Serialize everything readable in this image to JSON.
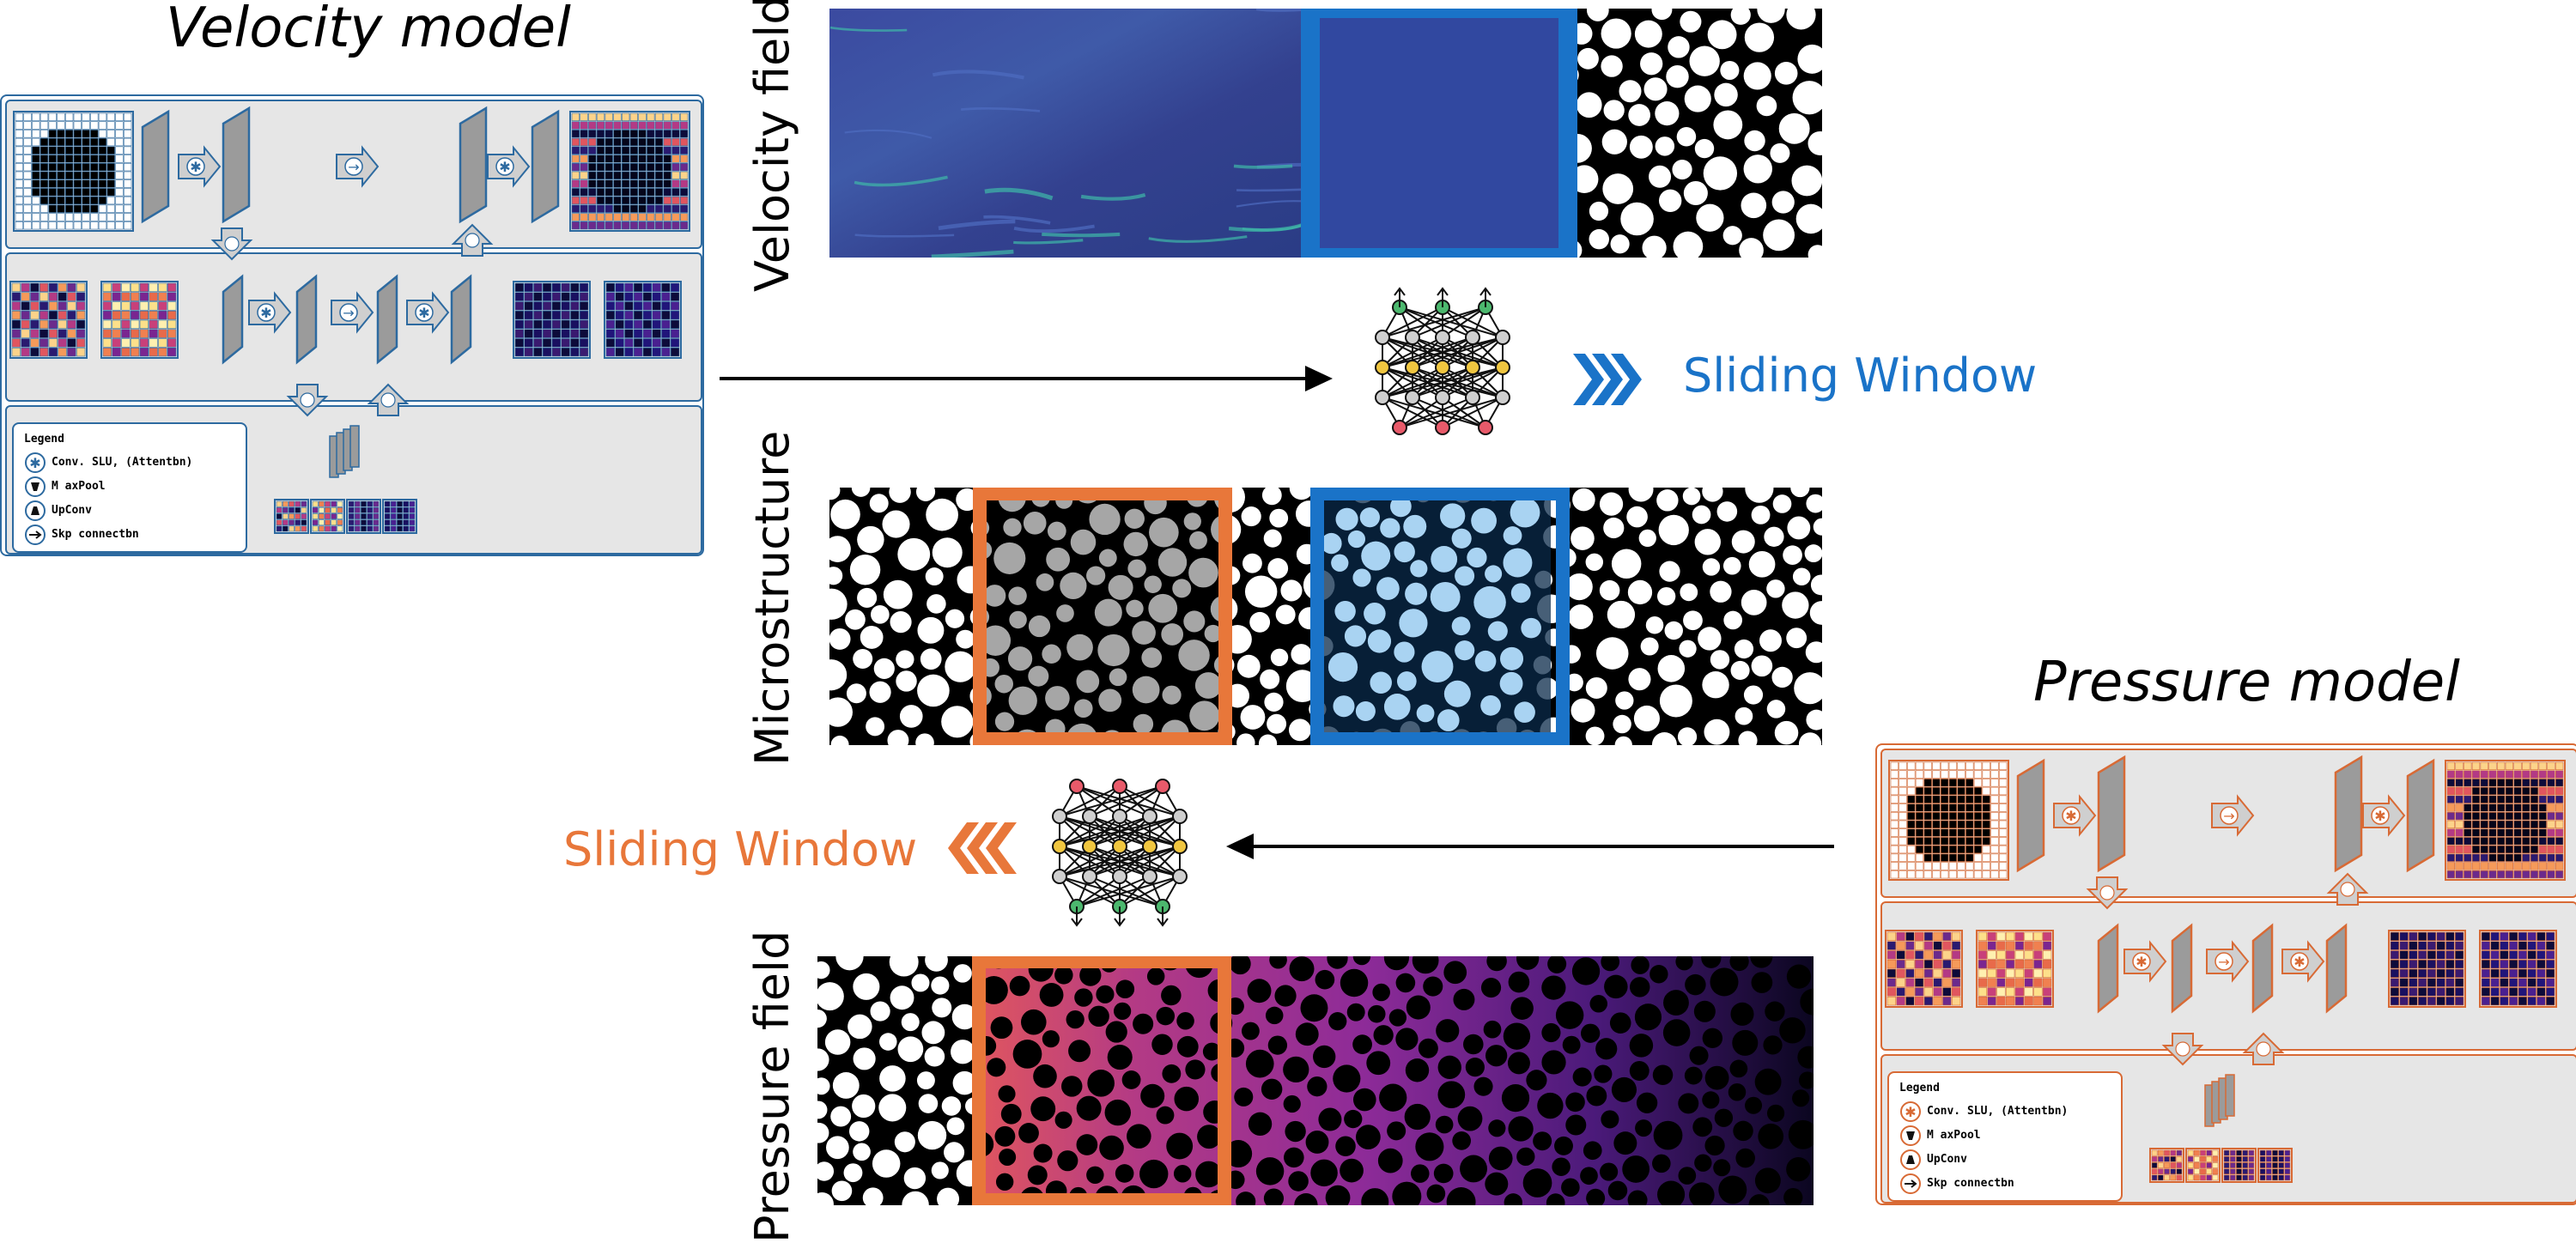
{
  "titles": {
    "velocity_model": "Velocity model",
    "pressure_model": "Pressure model"
  },
  "row_labels": {
    "velocity": "Velocity field",
    "micro": "Microstructure",
    "pressure": "Pressure field"
  },
  "sliding": {
    "top": "Sliding Window",
    "bottom": "Sliding Window",
    "blue": "#1a73c8",
    "orange": "#e8773a"
  },
  "legend": {
    "title": "Legend",
    "items": [
      "Conv. SLU, (Attentbn)",
      "M axPool",
      "UpConv",
      "Skp connectbn"
    ]
  },
  "colors": {
    "velocity_accent": "#2d6aa0",
    "pressure_accent": "#d86a35",
    "panel_bg": "#e6e6e6",
    "window_blue": "#1a73c8",
    "window_orange": "#e8773a"
  }
}
